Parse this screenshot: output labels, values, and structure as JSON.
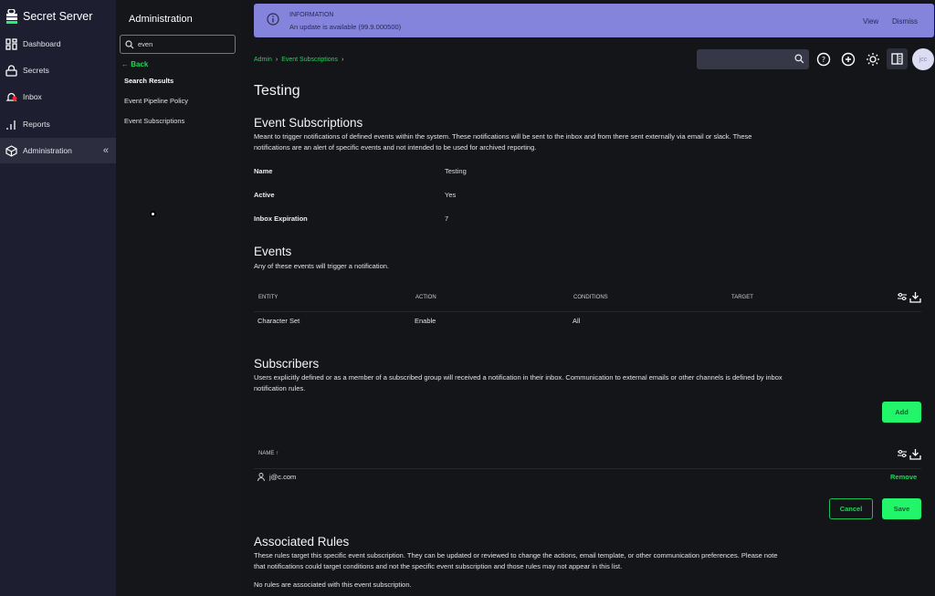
{
  "app": {
    "name": "Secret Server"
  },
  "nav": {
    "items": [
      {
        "label": "Dashboard",
        "icon": "dashboard-icon"
      },
      {
        "label": "Secrets",
        "icon": "lock-icon"
      },
      {
        "label": "Inbox",
        "icon": "bell-icon"
      },
      {
        "label": "Reports",
        "icon": "bar-chart-icon"
      },
      {
        "label": "Administration",
        "icon": "cube-icon"
      }
    ],
    "collapse": "«"
  },
  "subnav": {
    "title": "Administration",
    "search_value": "even",
    "back": "Back",
    "results_heading": "Search Results",
    "results": [
      "Event Pipeline Policy",
      "Event Subscriptions"
    ]
  },
  "banner": {
    "heading": "INFORMATION",
    "message": "An update is available (99.9.000500)",
    "view": "View",
    "dismiss": "Dismiss",
    "color": "#8584dc"
  },
  "breadcrumb": [
    "Admin",
    "Event Subscriptions"
  ],
  "user": {
    "initials": "jcc"
  },
  "page": {
    "title": "Testing"
  },
  "subscription": {
    "heading": "Event Subscriptions",
    "description": "Meant to trigger notifications of defined events within the system. These notifications will be sent to the inbox and from there sent externally via email or slack. These notifications are an alert of specific events and not intended to be used for archived reporting.",
    "fields": [
      {
        "label": "Name",
        "value": "Testing"
      },
      {
        "label": "Active",
        "value": "Yes"
      },
      {
        "label": "Inbox Expiration",
        "value": "7"
      }
    ]
  },
  "events": {
    "heading": "Events",
    "description": "Any of these events will trigger a notification.",
    "columns": [
      "ENTITY",
      "ACTION",
      "CONDITIONS",
      "TARGET"
    ],
    "rows": [
      {
        "entity": "Character Set",
        "action": "Enable",
        "conditions": "All",
        "target": ""
      }
    ]
  },
  "subscribers": {
    "heading": "Subscribers",
    "description": "Users explicitly defined or as a member of a subscribed group will received a notification in their inbox. Communication to external emails or other channels is defined by inbox notification rules.",
    "add": "Add",
    "column": "NAME",
    "sort": "↑",
    "rows": [
      {
        "name": "j@c.com",
        "remove": "Remove"
      }
    ]
  },
  "actions": {
    "cancel": "Cancel",
    "save": "Save"
  },
  "rules": {
    "heading": "Associated Rules",
    "description": "These rules target this specific event subscription. They can be updated or reviewed to change the actions, email template, or other communication preferences. Please note that notifications could target conditions and not the specific event subscription and those rules may not appear in this list.",
    "empty": "No rules are associated with this event subscription."
  },
  "colors": {
    "accent": "#22f56a",
    "link": "#22d45a",
    "sidebar": "#1d1e30"
  }
}
